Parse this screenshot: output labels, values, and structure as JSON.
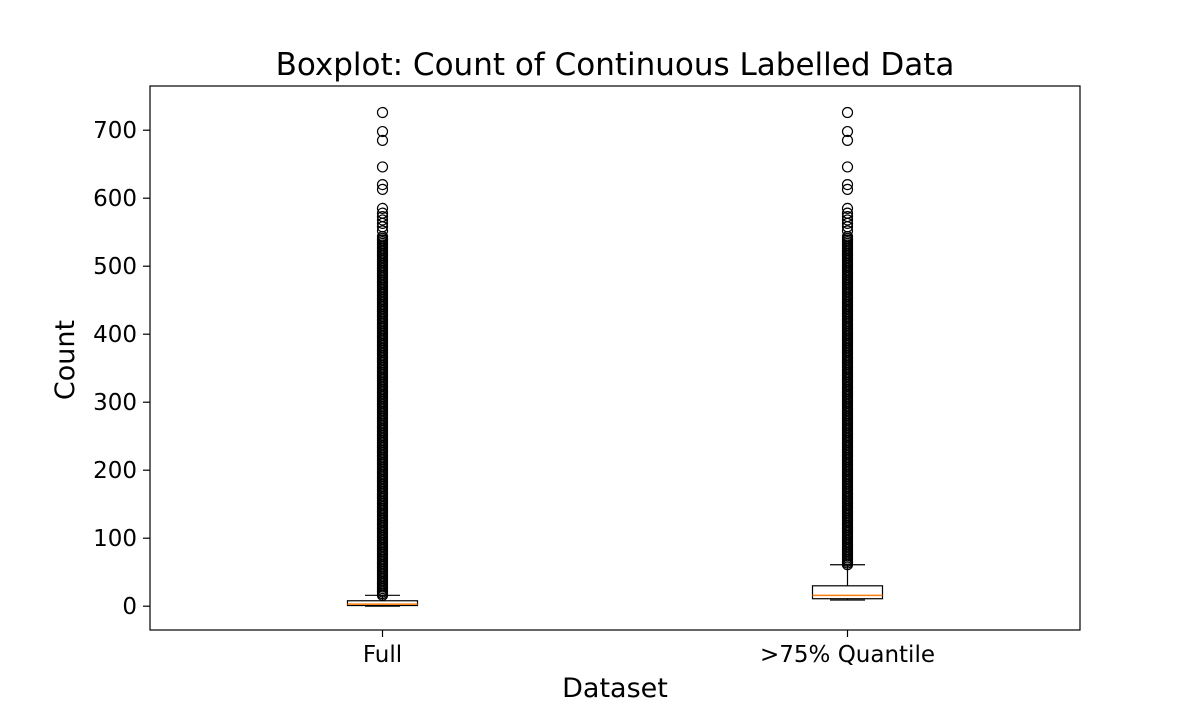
{
  "chart_data": {
    "type": "boxplot",
    "title": "Boxplot: Count of Continuous Labelled Data",
    "xlabel": "Dataset",
    "ylabel": "Count",
    "ylim": [
      -35,
      765
    ],
    "yticks": [
      0,
      100,
      200,
      300,
      400,
      500,
      600,
      700
    ],
    "grid": false,
    "categories": [
      "Full",
      ">75% Quantile"
    ],
    "boxes": [
      {
        "category": "Full",
        "whisker_low": 0,
        "q1": 1,
        "median": 3,
        "q3": 8,
        "whisker_high": 16,
        "outlier_dense_range": [
          16,
          545
        ],
        "outliers": [
          552,
          558,
          563,
          568,
          573,
          578,
          585,
          613,
          620,
          646,
          685,
          698,
          726
        ]
      },
      {
        "category": ">75% Quantile",
        "whisker_low": 9,
        "q1": 11,
        "median": 16,
        "q3": 30,
        "whisker_high": 61,
        "outlier_dense_range": [
          61,
          545
        ],
        "outliers": [
          552,
          558,
          563,
          568,
          573,
          578,
          585,
          613,
          620,
          646,
          685,
          698,
          726
        ]
      }
    ],
    "colors": {
      "box": "#000000",
      "median": "#ff7f0e",
      "outlier_edge": "#000000"
    }
  }
}
